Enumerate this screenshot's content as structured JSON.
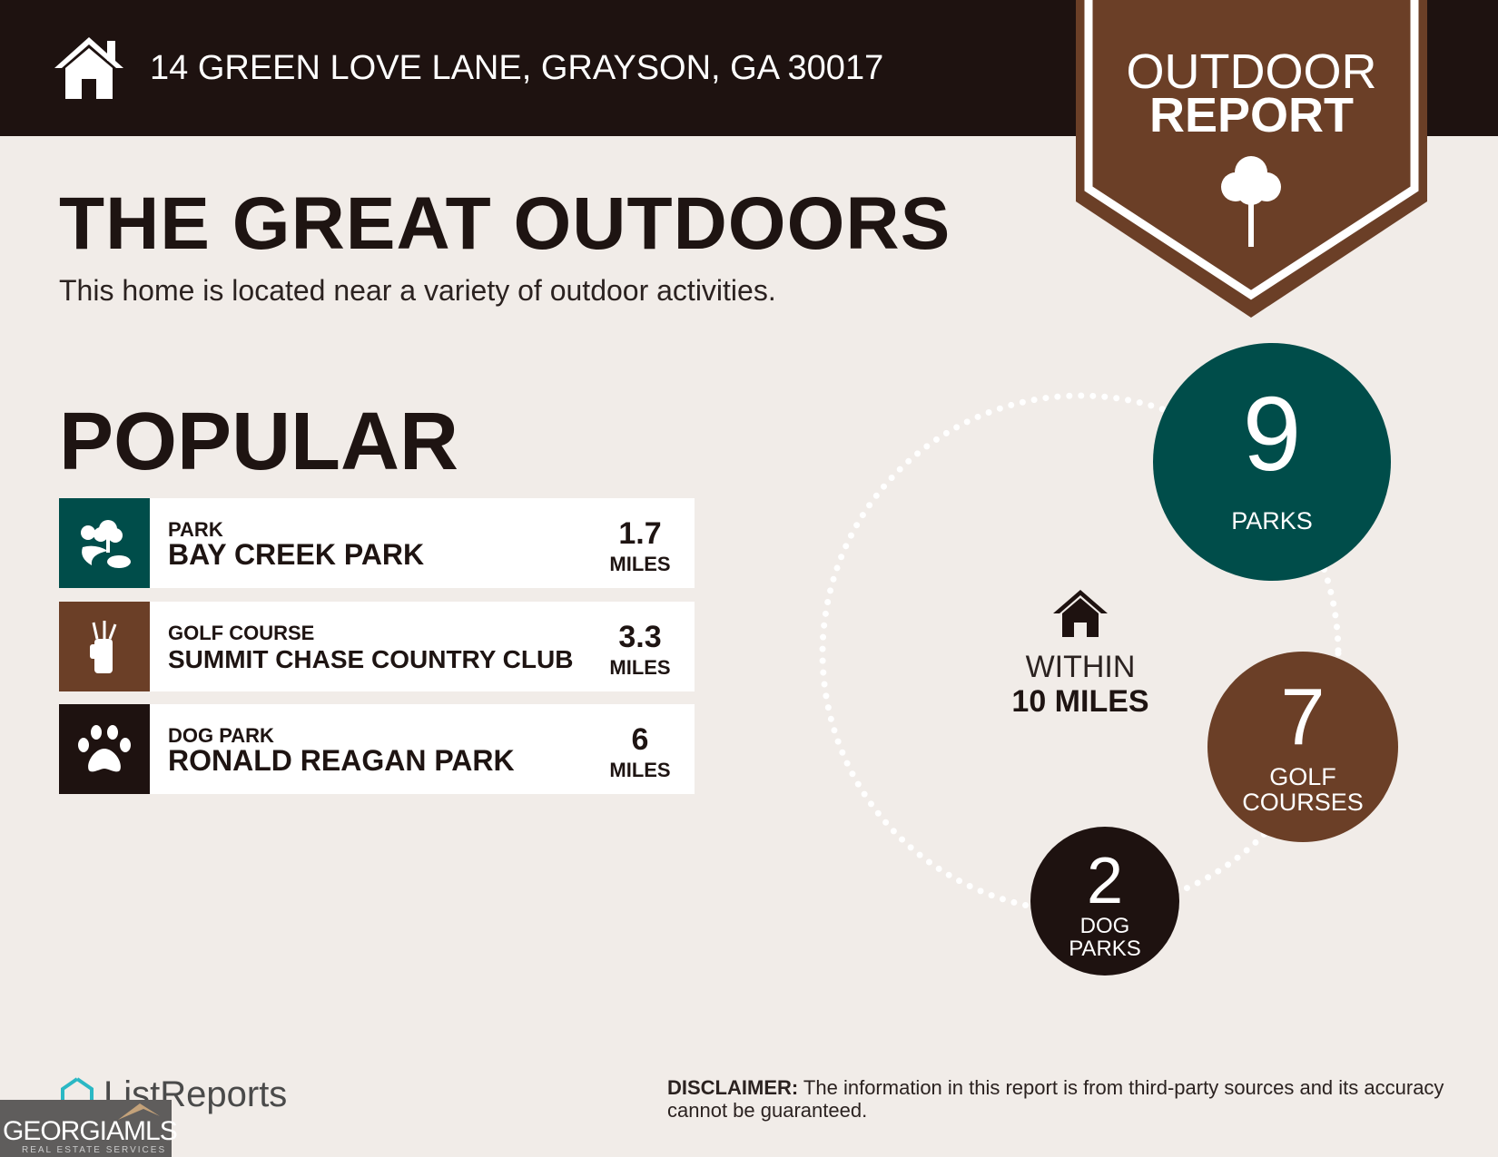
{
  "header": {
    "address": "14 GREEN LOVE LANE, GRAYSON, GA 30017",
    "icon": "house-icon"
  },
  "badge": {
    "line1": "OUTDOOR",
    "line2": "REPORT",
    "icon": "tree-icon",
    "color": "#6b3f27"
  },
  "title": "THE GREAT OUTDOORS",
  "subtitle": "This home is located near a variety of outdoor activities.",
  "popular": {
    "heading": "POPULAR",
    "items": [
      {
        "category": "PARK",
        "name": "BAY CREEK PARK",
        "distance": "1.7",
        "unit": "MILES",
        "icon": "park-icon",
        "color": "#004d4a"
      },
      {
        "category": "GOLF COURSE",
        "name": "SUMMIT CHASE COUNTRY CLUB",
        "distance": "3.3",
        "unit": "MILES",
        "icon": "golf-bag-icon",
        "color": "#6b3f27"
      },
      {
        "category": "DOG PARK",
        "name": "RONALD REAGAN PARK",
        "distance": "6",
        "unit": "MILES",
        "icon": "paw-icon",
        "color": "#1e1210"
      }
    ]
  },
  "summary": {
    "center_line1": "WITHIN",
    "center_line2": "10 MILES",
    "parks": {
      "count": "9",
      "label": "PARKS",
      "color": "#004d4a"
    },
    "golf": {
      "count": "7",
      "label1": "GOLF",
      "label2": "COURSES",
      "color": "#6b3f27"
    },
    "dog": {
      "count": "2",
      "label1": "DOG",
      "label2": "PARKS",
      "color": "#1e1210"
    }
  },
  "footer": {
    "logo": "ListReports",
    "mls_logo": "GEORGIAMLS",
    "mls_sub": "REAL ESTATE SERVICES",
    "disclaimer_label": "DISCLAIMER:",
    "disclaimer_text": " The information in this report is from third-party sources and its accuracy cannot be guaranteed."
  }
}
